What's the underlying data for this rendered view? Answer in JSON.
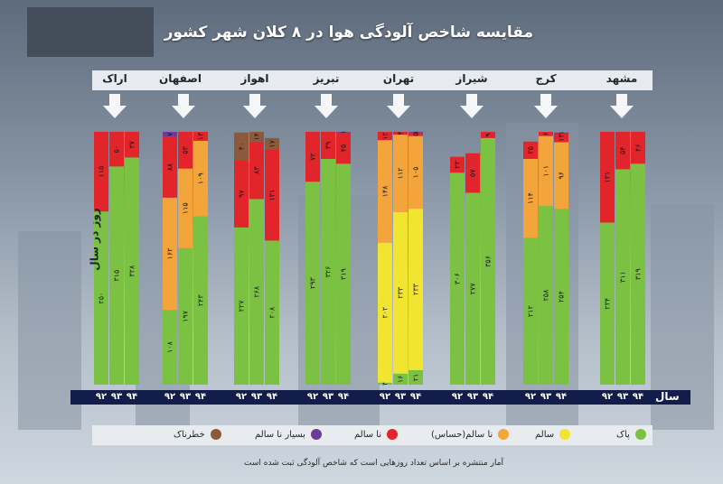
{
  "title": "مقایسه شاخص آلودگی هوا در ۸ کلان شهر کشور",
  "y_label": "روز در سال",
  "x_axis_title": "سال",
  "note": "آمار منتشره بر اساس تعداد روزهایی است که شاخص آلودگی ثبت شده است",
  "legend": [
    {
      "label": "پاک",
      "color": "#7cc242"
    },
    {
      "label": "سالم",
      "color": "#f2e531"
    },
    {
      "label": "نا سالم(حساس)",
      "color": "#f3a43a"
    },
    {
      "label": "نا سالم",
      "color": "#e2242b"
    },
    {
      "label": "بسیار نا سالم",
      "color": "#6a3b99"
    },
    {
      "label": "خطرناک",
      "color": "#8a5a3b"
    }
  ],
  "chart_data": {
    "type": "bar",
    "stacked": true,
    "years": [
      "۹۲",
      "۹۳",
      "۹۴"
    ],
    "categories_order": [
      "پاک",
      "سالم",
      "نا سالم(حساس)",
      "نا سالم",
      "بسیار نا سالم",
      "خطرناک"
    ],
    "cities": [
      {
        "name": "اراک",
        "bars": [
          {
            "year": "۹۲",
            "segments": [
              {
                "cat": "پاک",
                "value": 250
              },
              {
                "cat": "نا سالم",
                "value": 115
              }
            ]
          },
          {
            "year": "۹۳",
            "segments": [
              {
                "cat": "پاک",
                "value": 315
              },
              {
                "cat": "نا سالم",
                "value": 50
              }
            ]
          },
          {
            "year": "۹۴",
            "segments": [
              {
                "cat": "پاک",
                "value": 328
              },
              {
                "cat": "نا سالم",
                "value": 37
              }
            ]
          }
        ]
      },
      {
        "name": "اصفهان",
        "bars": [
          {
            "year": "۹۲",
            "segments": [
              {
                "cat": "پاک",
                "value": 108
              },
              {
                "cat": "نا سالم(حساس)",
                "value": 162
              },
              {
                "cat": "نا سالم",
                "value": 88
              },
              {
                "cat": "بسیار نا سالم",
                "value": 7
              }
            ]
          },
          {
            "year": "۹۳",
            "segments": [
              {
                "cat": "پاک",
                "value": 197
              },
              {
                "cat": "نا سالم(حساس)",
                "value": 115
              },
              {
                "cat": "نا سالم",
                "value": 53
              }
            ]
          },
          {
            "year": "۹۴",
            "segments": [
              {
                "cat": "پاک",
                "value": 243
              },
              {
                "cat": "نا سالم(حساس)",
                "value": 109
              },
              {
                "cat": "نا سالم",
                "value": 13
              }
            ]
          }
        ]
      },
      {
        "name": "اهواز",
        "bars": [
          {
            "year": "۹۲",
            "segments": [
              {
                "cat": "پاک",
                "value": 227
              },
              {
                "cat": "نا سالم",
                "value": 97
              },
              {
                "cat": "خطرناک",
                "value": 40
              }
            ]
          },
          {
            "year": "۹۳",
            "segments": [
              {
                "cat": "پاک",
                "value": 268
              },
              {
                "cat": "نا سالم",
                "value": 83
              },
              {
                "cat": "خطرناک",
                "value": 14
              }
            ]
          },
          {
            "year": "۹۴",
            "segments": [
              {
                "cat": "پاک",
                "value": 208
              },
              {
                "cat": "نا سالم",
                "value": 131
              },
              {
                "cat": "خطرناک",
                "value": 17
              }
            ]
          }
        ]
      },
      {
        "name": "تبریز",
        "bars": [
          {
            "year": "۹۲",
            "segments": [
              {
                "cat": "پاک",
                "value": 293
              },
              {
                "cat": "نا سالم",
                "value": 72
              }
            ]
          },
          {
            "year": "۹۳",
            "segments": [
              {
                "cat": "پاک",
                "value": 326
              },
              {
                "cat": "نا سالم",
                "value": 39
              }
            ]
          },
          {
            "year": "۹۴",
            "segments": [
              {
                "cat": "پاک",
                "value": 319
              },
              {
                "cat": "نا سالم",
                "value": 45
              },
              {
                "cat": "بسیار نا سالم",
                "value": 1
              }
            ]
          }
        ]
      },
      {
        "name": "تهران",
        "bars": [
          {
            "year": "۹۲",
            "segments": [
              {
                "cat": "پاک",
                "value": 3
              },
              {
                "cat": "سالم",
                "value": 202
              },
              {
                "cat": "نا سالم(حساس)",
                "value": 148
              },
              {
                "cat": "نا سالم",
                "value": 12
              }
            ]
          },
          {
            "year": "۹۳",
            "segments": [
              {
                "cat": "پاک",
                "value": 16
              },
              {
                "cat": "سالم",
                "value": 233
              },
              {
                "cat": "نا سالم(حساس)",
                "value": 112
              },
              {
                "cat": "نا سالم",
                "value": 4
              }
            ]
          },
          {
            "year": "۹۴",
            "segments": [
              {
                "cat": "پاک",
                "value": 21
              },
              {
                "cat": "سالم",
                "value": 233
              },
              {
                "cat": "نا سالم(حساس)",
                "value": 105
              },
              {
                "cat": "نا سالم",
                "value": 5
              },
              {
                "cat": "بسیار نا سالم",
                "value": 1
              }
            ]
          }
        ]
      },
      {
        "name": "شیراز",
        "bars": [
          {
            "year": "۹۲",
            "segments": [
              {
                "cat": "پاک",
                "value": 306
              },
              {
                "cat": "نا سالم",
                "value": 23
              }
            ]
          },
          {
            "year": "۹۳",
            "segments": [
              {
                "cat": "پاک",
                "value": 277
              },
              {
                "cat": "نا سالم",
                "value": 57
              }
            ]
          },
          {
            "year": "۹۴",
            "segments": [
              {
                "cat": "پاک",
                "value": 356
              },
              {
                "cat": "نا سالم",
                "value": 9
              }
            ]
          }
        ]
      },
      {
        "name": "کرج",
        "bars": [
          {
            "year": "۹۲",
            "segments": [
              {
                "cat": "پاک",
                "value": 212
              },
              {
                "cat": "نا سالم(حساس)",
                "value": 114
              },
              {
                "cat": "نا سالم",
                "value": 25
              }
            ]
          },
          {
            "year": "۹۳",
            "segments": [
              {
                "cat": "پاک",
                "value": 258
              },
              {
                "cat": "نا سالم(حساس)",
                "value": 101
              },
              {
                "cat": "نا سالم",
                "value": 6
              }
            ]
          },
          {
            "year": "۹۴",
            "segments": [
              {
                "cat": "پاک",
                "value": 254
              },
              {
                "cat": "نا سالم(حساس)",
                "value": 96
              },
              {
                "cat": "نا سالم",
                "value": 13
              },
              {
                "cat": "بسیار نا سالم",
                "value": 1
              }
            ]
          }
        ]
      },
      {
        "name": "مشهد",
        "bars": [
          {
            "year": "۹۲",
            "segments": [
              {
                "cat": "پاک",
                "value": 234
              },
              {
                "cat": "نا سالم",
                "value": 131
              }
            ]
          },
          {
            "year": "۹۳",
            "segments": [
              {
                "cat": "پاک",
                "value": 311
              },
              {
                "cat": "نا سالم",
                "value": 54
              }
            ]
          },
          {
            "year": "۹۴",
            "segments": [
              {
                "cat": "پاک",
                "value": 319
              },
              {
                "cat": "نا سالم",
                "value": 46
              }
            ]
          }
        ]
      }
    ]
  }
}
